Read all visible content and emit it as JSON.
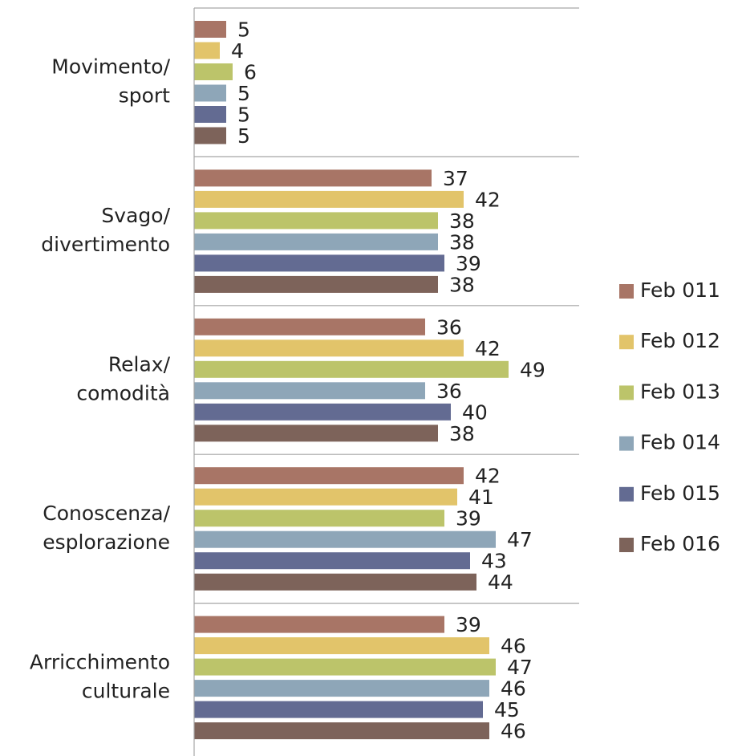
{
  "chart_data": {
    "type": "bar",
    "orientation": "horizontal",
    "categories": [
      "Movimento/\nsport",
      "Svago/\ndivertimento",
      "Relax/\ncomodità",
      "Conoscenza/\nesplorazione",
      "Arricchimento\nculturale"
    ],
    "series": [
      {
        "name": "Feb 011",
        "color": "#a87566",
        "values": [
          5,
          37,
          36,
          42,
          39
        ]
      },
      {
        "name": "Feb 012",
        "color": "#e2c46a",
        "values": [
          4,
          42,
          42,
          41,
          46
        ]
      },
      {
        "name": "Feb 013",
        "color": "#bcc46a",
        "values": [
          6,
          38,
          49,
          39,
          47
        ]
      },
      {
        "name": "Feb 014",
        "color": "#8ea6b8",
        "values": [
          5,
          38,
          36,
          47,
          46
        ]
      },
      {
        "name": "Feb 015",
        "color": "#636b92",
        "values": [
          5,
          39,
          40,
          43,
          45
        ]
      },
      {
        "name": "Feb 016",
        "color": "#7d635a",
        "values": [
          5,
          38,
          38,
          44,
          46
        ]
      }
    ],
    "xlim": [
      0,
      60
    ],
    "legend": "right"
  }
}
